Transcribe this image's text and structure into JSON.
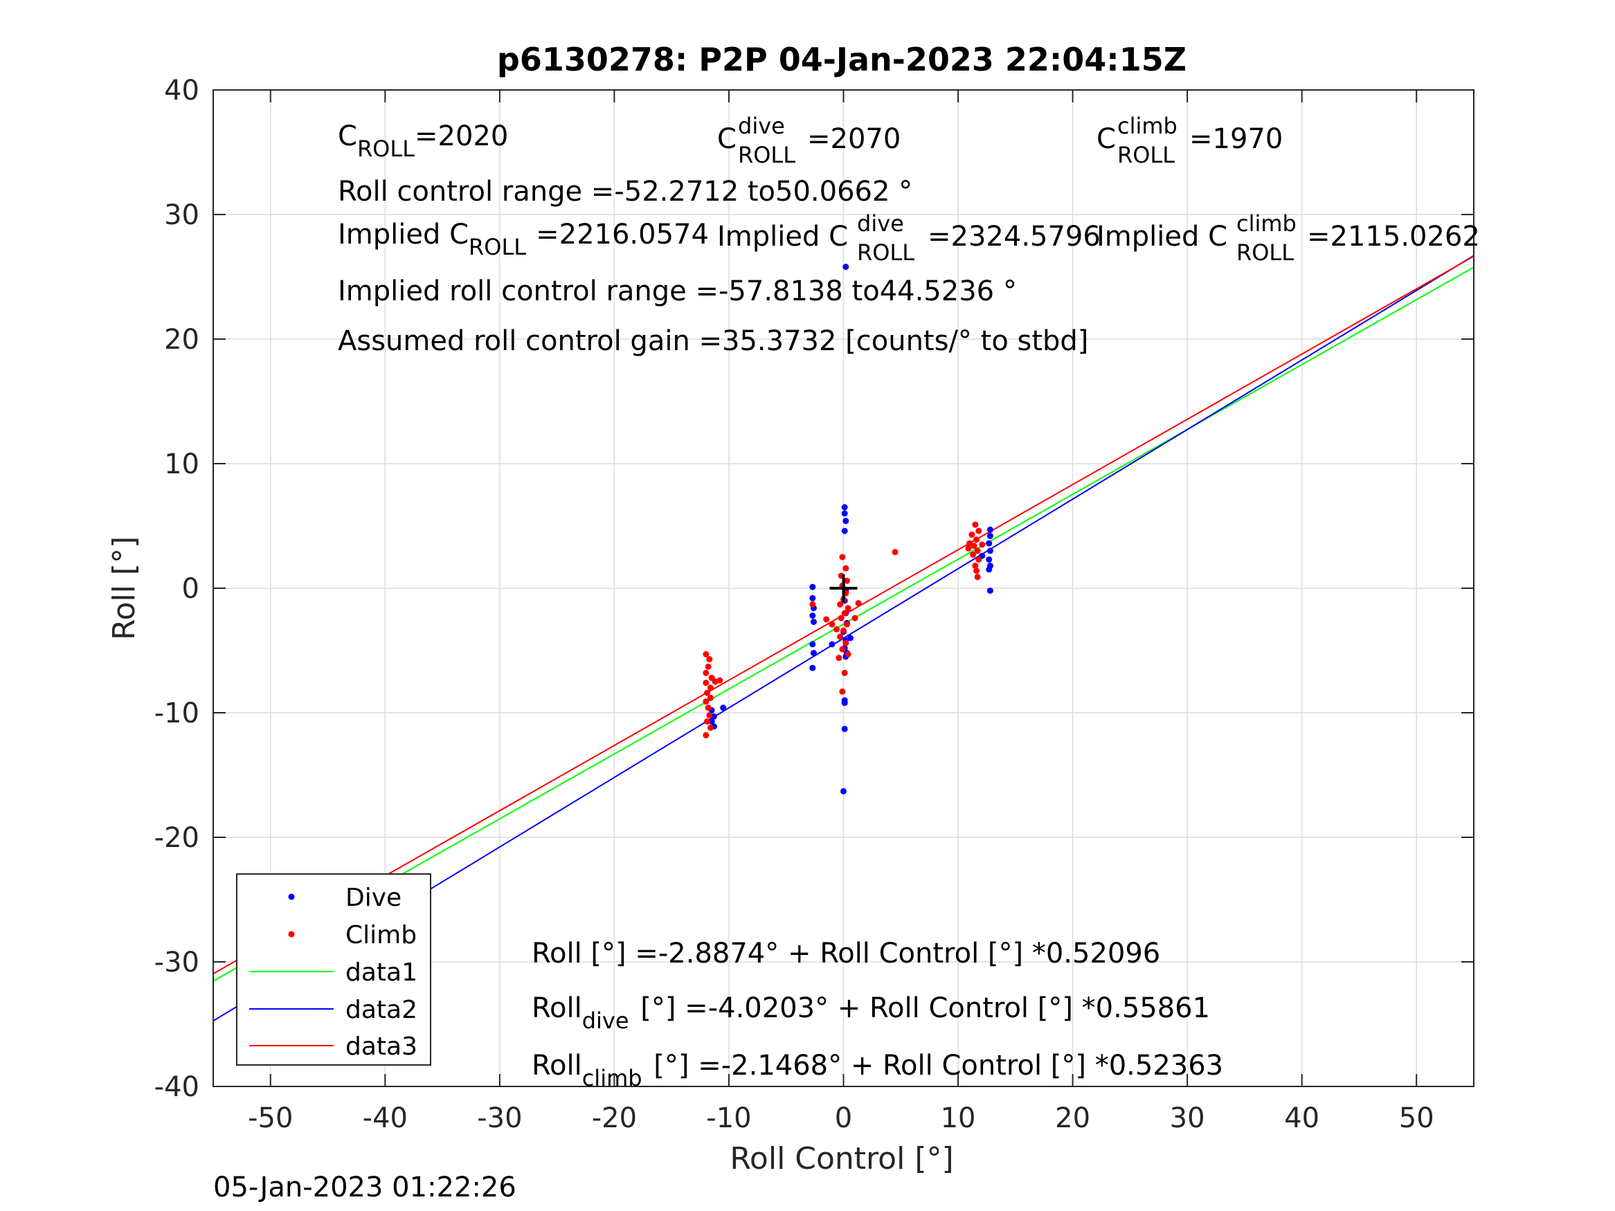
{
  "chart_data": {
    "type": "scatter",
    "title": "p6130278: P2P 04-Jan-2023 22:04:15Z",
    "xlabel": "Roll Control [°]",
    "ylabel": "Roll [°]",
    "xlim": [
      -55,
      55
    ],
    "ylim": [
      -40,
      40
    ],
    "xticks": [
      -50,
      -40,
      -30,
      -20,
      -10,
      0,
      10,
      20,
      30,
      40,
      50
    ],
    "yticks": [
      -40,
      -30,
      -20,
      -10,
      0,
      10,
      20,
      30,
      40
    ],
    "xtick_labels": [
      "-50",
      "-40",
      "-30",
      "-20",
      "-10",
      "0",
      "10",
      "20",
      "30",
      "40",
      "50"
    ],
    "ytick_labels": [
      "-40",
      "-30",
      "-20",
      "-10",
      "0",
      "10",
      "20",
      "30",
      "40"
    ],
    "grid": true,
    "legend_placement": "bottom-left",
    "colors": {
      "dive": "#0000ff",
      "climb": "#ff0000",
      "data1": "#00ff00",
      "data2": "#0000ff",
      "data3": "#ff0000",
      "marker": "#000000"
    },
    "series": [
      {
        "name": "Dive",
        "kind": "points",
        "color": "#0000ff",
        "points": [
          [
            0.2,
            25.8
          ],
          [
            0.1,
            6.5
          ],
          [
            0.1,
            6.0
          ],
          [
            0.2,
            5.4
          ],
          [
            0.1,
            4.6
          ],
          [
            0.2,
            -0.2
          ],
          [
            0.1,
            -1.0
          ],
          [
            0.2,
            -2.0
          ],
          [
            0.3,
            -2.8
          ],
          [
            0.0,
            -3.5
          ],
          [
            0.2,
            -4.2
          ],
          [
            0.1,
            -4.8
          ],
          [
            0.3,
            -5.2
          ],
          [
            0.2,
            -5.5
          ],
          [
            0.1,
            -9.0
          ],
          [
            0.1,
            -9.2
          ],
          [
            0.1,
            -11.3
          ],
          [
            0.0,
            -16.3
          ],
          [
            -2.7,
            0.1
          ],
          [
            -2.7,
            -0.8
          ],
          [
            -2.6,
            -1.6
          ],
          [
            -2.7,
            -2.2
          ],
          [
            -2.6,
            -2.7
          ],
          [
            -2.7,
            -4.5
          ],
          [
            -2.6,
            -5.2
          ],
          [
            -2.7,
            -6.4
          ],
          [
            -1.0,
            -4.5
          ],
          [
            0.6,
            -4.0
          ],
          [
            -11.5,
            -9.8
          ],
          [
            -11.3,
            -10.3
          ],
          [
            -11.5,
            -10.7
          ],
          [
            -11.3,
            -11.1
          ],
          [
            -10.5,
            -9.6
          ],
          [
            12.8,
            4.7
          ],
          [
            12.8,
            4.2
          ],
          [
            12.7,
            3.6
          ],
          [
            12.8,
            3.0
          ],
          [
            12.7,
            2.3
          ],
          [
            12.8,
            1.8
          ],
          [
            12.7,
            1.5
          ],
          [
            12.8,
            -0.2
          ],
          [
            12.1,
            2.6
          ]
        ]
      },
      {
        "name": "Climb",
        "kind": "points",
        "color": "#ff0000",
        "points": [
          [
            -0.1,
            2.5
          ],
          [
            0.2,
            1.6
          ],
          [
            -0.2,
            1.0
          ],
          [
            0.3,
            0.6
          ],
          [
            -0.1,
            0.2
          ],
          [
            0.2,
            -0.4
          ],
          [
            0.0,
            -0.9
          ],
          [
            -0.3,
            -1.3
          ],
          [
            0.4,
            -1.6
          ],
          [
            0.1,
            -2.0
          ],
          [
            -0.2,
            -2.4
          ],
          [
            0.3,
            -2.9
          ],
          [
            0.0,
            -3.4
          ],
          [
            -0.3,
            -3.9
          ],
          [
            0.2,
            -4.4
          ],
          [
            -0.1,
            -4.9
          ],
          [
            0.4,
            -5.3
          ],
          [
            -0.4,
            -5.6
          ],
          [
            0.1,
            -6.8
          ],
          [
            -0.1,
            -8.3
          ],
          [
            -1.5,
            -2.5
          ],
          [
            -1.0,
            -2.9
          ],
          [
            -0.6,
            -3.3
          ],
          [
            1.3,
            -1.2
          ],
          [
            1.0,
            -2.4
          ],
          [
            4.5,
            2.9
          ],
          [
            -2.7,
            -1.3
          ],
          [
            -12.0,
            -5.3
          ],
          [
            -11.7,
            -5.7
          ],
          [
            -11.8,
            -6.3
          ],
          [
            -12.0,
            -6.8
          ],
          [
            -11.5,
            -7.2
          ],
          [
            -12.0,
            -7.6
          ],
          [
            -11.6,
            -8.0
          ],
          [
            -11.2,
            -7.5
          ],
          [
            -10.8,
            -7.4
          ],
          [
            -11.9,
            -8.4
          ],
          [
            -11.6,
            -8.8
          ],
          [
            -12.0,
            -9.1
          ],
          [
            -11.8,
            -9.6
          ],
          [
            -11.7,
            -10.2
          ],
          [
            -11.9,
            -10.7
          ],
          [
            -12.0,
            -11.8
          ],
          [
            -11.6,
            -11.2
          ],
          [
            11.5,
            5.1
          ],
          [
            11.8,
            4.6
          ],
          [
            11.2,
            4.3
          ],
          [
            11.6,
            3.9
          ],
          [
            11.0,
            3.6
          ],
          [
            11.4,
            3.4
          ],
          [
            10.9,
            3.2
          ],
          [
            11.7,
            3.0
          ],
          [
            11.3,
            2.7
          ],
          [
            11.8,
            2.3
          ],
          [
            11.5,
            1.8
          ],
          [
            11.6,
            1.4
          ],
          [
            11.7,
            0.9
          ],
          [
            12.1,
            3.5
          ]
        ]
      },
      {
        "name": "data1",
        "kind": "line",
        "color": "#00ff00",
        "x": [
          -55,
          55
        ],
        "y": [
          -31.54,
          25.77
        ]
      },
      {
        "name": "data2",
        "kind": "line",
        "color": "#0000ff",
        "x": [
          -55,
          55
        ],
        "y": [
          -34.74,
          26.7
        ]
      },
      {
        "name": "data3",
        "kind": "line",
        "color": "#ff0000",
        "x": [
          -55,
          55
        ],
        "y": [
          -30.95,
          26.65
        ]
      }
    ],
    "center_marker": {
      "x": 0,
      "y": 0,
      "symbol": "+"
    }
  },
  "annotations": {
    "c_roll": {
      "base": "C",
      "sub": "ROLL",
      "value": "=2020"
    },
    "c_roll_dive": {
      "base": "C",
      "sup": "dive",
      "sub": "ROLL",
      "value": "=2070"
    },
    "c_roll_climb": {
      "base": "C",
      "sup": "climb",
      "sub": "ROLL",
      "value": "=1970"
    },
    "range": "Roll control range =-52.2712 to50.0662 °",
    "implied_c_roll": {
      "prefix": "Implied C",
      "sub": "ROLL",
      "value": "=2216.0574"
    },
    "implied_c_roll_dive": {
      "prefix": "Implied C",
      "sup": "dive",
      "sub": "ROLL",
      "value": "=2324.5796"
    },
    "implied_c_roll_climb": {
      "prefix": "Implied C",
      "sup": "climb",
      "sub": "ROLL",
      "value": "=2115.0262"
    },
    "implied_range": "Implied roll control range =-57.8138 to44.5236 °",
    "gain": "Assumed roll control gain =35.3732 [counts/° to stbd]",
    "fit_all": "Roll [°] =-2.8874° + Roll Control [°] *0.52096",
    "fit_dive": {
      "base": "Roll",
      "sub": "dive",
      "value": " [°] =-4.0203° + Roll Control [°] *0.55861"
    },
    "fit_climb": {
      "base": "Roll",
      "sub": "climb",
      "value": " [°] =-2.1468° + Roll Control [°] *0.52363"
    }
  },
  "footer": "05-Jan-2023 01:22:26"
}
